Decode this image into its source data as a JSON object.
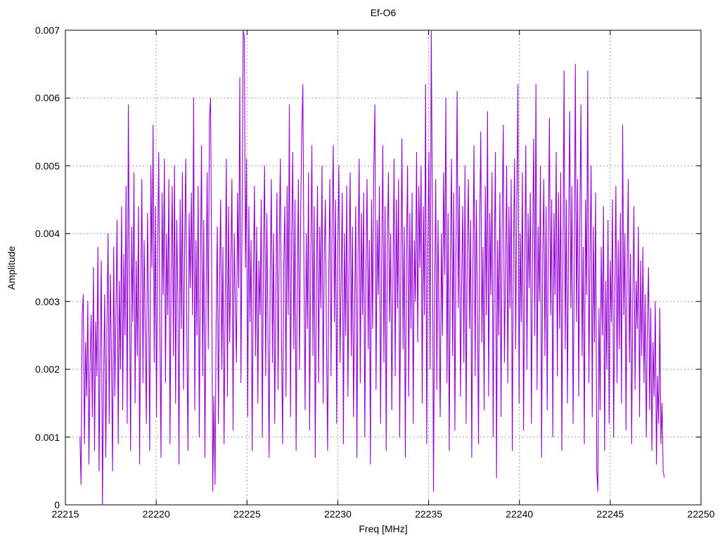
{
  "title": "Ef-O6",
  "chart_data": {
    "type": "line",
    "title": "Ef-O6",
    "xlabel": "Freq [MHz]",
    "ylabel": "Amplitude",
    "xlim": [
      22215,
      22250
    ],
    "ylim": [
      0,
      0.007
    ],
    "xticks": [
      22215,
      22220,
      22225,
      22230,
      22235,
      22240,
      22245,
      22250
    ],
    "xtick_labels": [
      "22215",
      "22220",
      "22225",
      "22230",
      "22235",
      "22240",
      "22245",
      "22250"
    ],
    "yticks": [
      0,
      0.001,
      0.002,
      0.003,
      0.004,
      0.005,
      0.006,
      0.007
    ],
    "ytick_labels": [
      "0",
      "0.001",
      "0.002",
      "0.003",
      "0.004",
      "0.005",
      "0.006",
      "0.007"
    ],
    "grid": true,
    "legend": false,
    "line_color": "#9400d3",
    "grid_color": "#9e9e9e",
    "axis_color": "#000000",
    "series": [
      {
        "name": "Ef-O6",
        "x_start": 22215.8,
        "x_step": 0.062,
        "amp_scale": 0.0001,
        "values": [
          10,
          3,
          28,
          31,
          9,
          24,
          16,
          30,
          6,
          21,
          28,
          13,
          35,
          8,
          27,
          19,
          38,
          5,
          23,
          36,
          0,
          18,
          31,
          7,
          26,
          40,
          12,
          34,
          22,
          5,
          38,
          16,
          29,
          42,
          9,
          33,
          20,
          44,
          14,
          37,
          25,
          47,
          12,
          59,
          33,
          8,
          41,
          27,
          49,
          15,
          36,
          22,
          44,
          6,
          31,
          48,
          18,
          39,
          26,
          12,
          43,
          29,
          8,
          50,
          35,
          56,
          21,
          44,
          13,
          37,
          52,
          26,
          7,
          46,
          31,
          51,
          18,
          40,
          28,
          48,
          9,
          34,
          47,
          22,
          50,
          15,
          42,
          30,
          6,
          45,
          26,
          49,
          17,
          38,
          51,
          24,
          8,
          43,
          32,
          46,
          28,
          60,
          14,
          39,
          25,
          47,
          10,
          35,
          53,
          19,
          42,
          7,
          30,
          49,
          23,
          57,
          60,
          36,
          2,
          16,
          3,
          27,
          41,
          12,
          33,
          45,
          20,
          38,
          9,
          29,
          51,
          16,
          44,
          24,
          36,
          48,
          11,
          40,
          30,
          21,
          46,
          32,
          63,
          18,
          42,
          70,
          69,
          35,
          51,
          13,
          44,
          27,
          39,
          8,
          33,
          47,
          22,
          41,
          15,
          36,
          28,
          45,
          10,
          37,
          50,
          19,
          43,
          26,
          7,
          34,
          48,
          21,
          40,
          12,
          31,
          46,
          17,
          38,
          51,
          25,
          9,
          35,
          44,
          16,
          47,
          28,
          59,
          13,
          39,
          52,
          23,
          45,
          8,
          31,
          48,
          20,
          42,
          55,
          62,
          34,
          14,
          40,
          26,
          49,
          11,
          36,
          53,
          22,
          44,
          7,
          32,
          47,
          18,
          41,
          29,
          50,
          15,
          37,
          45,
          24,
          8,
          34,
          48,
          19,
          42,
          53,
          27,
          45,
          12,
          38,
          50,
          21,
          33,
          46,
          9,
          40,
          25,
          47,
          16,
          35,
          49,
          22,
          41,
          13,
          30,
          44,
          7,
          37,
          51,
          18,
          43,
          28,
          46,
          10,
          34,
          48,
          23,
          39,
          6,
          45,
          26,
          50,
          59,
          17,
          42,
          31,
          47,
          12,
          36,
          53,
          21,
          44,
          8,
          38,
          49,
          27,
          40,
          14,
          33,
          51,
          19,
          45,
          29,
          48,
          10,
          35,
          54,
          23,
          41,
          7,
          37,
          50,
          16,
          43,
          26,
          46,
          12,
          39,
          30,
          52,
          24,
          47,
          35,
          50,
          15,
          44,
          28,
          62,
          9,
          38,
          52,
          20,
          70,
          45,
          2,
          31,
          48,
          17,
          42,
          27,
          13,
          40,
          25,
          49,
          34,
          60,
          18,
          43,
          8,
          36,
          51,
          22,
          46,
          11,
          38,
          61,
          29,
          47,
          16,
          33,
          44,
          21,
          50,
          12,
          37,
          48,
          26,
          42,
          7,
          35,
          53,
          19,
          45,
          30,
          9,
          41,
          55,
          24,
          38,
          14,
          47,
          28,
          58,
          16,
          43,
          31,
          49,
          10,
          36,
          52,
          4,
          39,
          25,
          46,
          13,
          42,
          56,
          21,
          34,
          50,
          18,
          44,
          29,
          48,
          8,
          37,
          51,
          23,
          45,
          62,
          15,
          40,
          27,
          49,
          11,
          35,
          53,
          20,
          43,
          32,
          46,
          12,
          38,
          54,
          25,
          62,
          17,
          41,
          30,
          50,
          7,
          36,
          48,
          22,
          44,
          14,
          39,
          57,
          28,
          45,
          10,
          43,
          31,
          52,
          19,
          46,
          26,
          49,
          8,
          37,
          64,
          23,
          45,
          15,
          40,
          58,
          29,
          47,
          12,
          34,
          65,
          27,
          48,
          16,
          42,
          59,
          22,
          38,
          9,
          45,
          31,
          64,
          18,
          36,
          50,
          13,
          41,
          24,
          46,
          5,
          2,
          29,
          14,
          38,
          25,
          44,
          8,
          33,
          20,
          42,
          12,
          36,
          27,
          45,
          10,
          31,
          47,
          18,
          39,
          23,
          43,
          15,
          56,
          28,
          40,
          11,
          35,
          48,
          21,
          37,
          9,
          30,
          44,
          17,
          33,
          26,
          41,
          13,
          36,
          22,
          38,
          18,
          31,
          10,
          27,
          35,
          14,
          29,
          8,
          24,
          16,
          30,
          6,
          19,
          12,
          29,
          9,
          15,
          5,
          4
        ]
      }
    ]
  }
}
